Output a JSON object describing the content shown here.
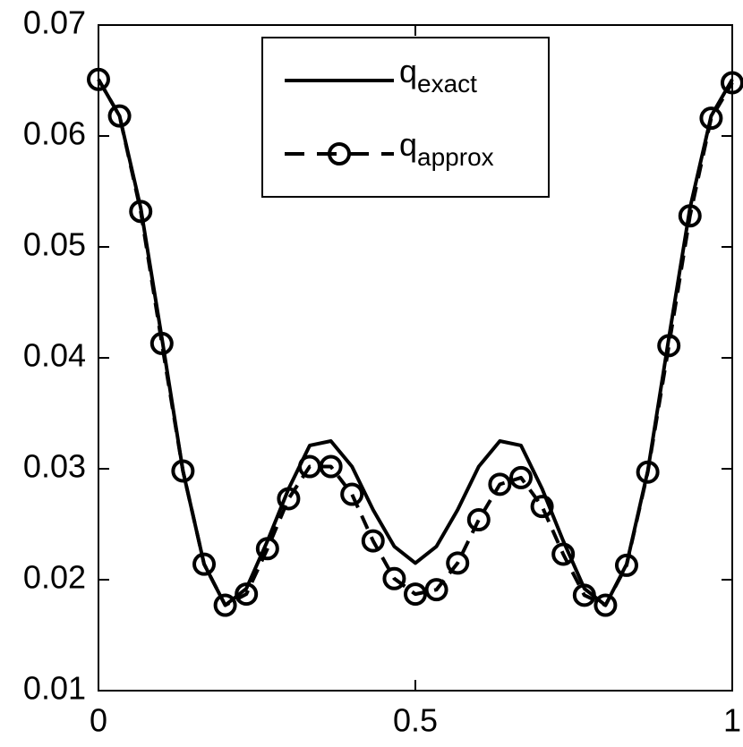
{
  "chart_data": {
    "type": "line",
    "x": [
      0,
      0.0333,
      0.0667,
      0.1,
      0.1333,
      0.1667,
      0.2,
      0.2333,
      0.2667,
      0.3,
      0.3333,
      0.3667,
      0.4,
      0.4333,
      0.4667,
      0.5,
      0.5333,
      0.5667,
      0.6,
      0.6333,
      0.6667,
      0.7,
      0.7333,
      0.7667,
      0.8,
      0.8333,
      0.8667,
      0.9,
      0.9333,
      0.9667,
      1
    ],
    "series": [
      {
        "name": "q",
        "subscript": "exact",
        "color": "#000000",
        "style": "solid",
        "values": [
          0.0651,
          0.0618,
          0.0535,
          0.0418,
          0.0298,
          0.0214,
          0.0177,
          0.0192,
          0.0235,
          0.0282,
          0.0321,
          0.0325,
          0.0302,
          0.0263,
          0.023,
          0.0215,
          0.023,
          0.0263,
          0.0302,
          0.0325,
          0.0321,
          0.0282,
          0.0235,
          0.0192,
          0.0177,
          0.0214,
          0.0298,
          0.0418,
          0.0535,
          0.0618,
          0.0651
        ]
      },
      {
        "name": "q",
        "subscript": "approx",
        "color": "#000000",
        "style": "dashed",
        "marker": "circle",
        "values": [
          0.0651,
          0.0618,
          0.0532,
          0.0413,
          0.0298,
          0.0214,
          0.0177,
          0.0187,
          0.0228,
          0.0273,
          0.0302,
          0.0302,
          0.0277,
          0.0235,
          0.0201,
          0.0187,
          0.0191,
          0.0215,
          0.0254,
          0.0286,
          0.0292,
          0.0266,
          0.0223,
          0.0186,
          0.0177,
          0.0213,
          0.0297,
          0.0411,
          0.0528,
          0.0616,
          0.0648
        ]
      }
    ],
    "xlim": [
      0,
      1
    ],
    "xticks": [
      0,
      0.5,
      1
    ],
    "ylim": [
      0.01,
      0.07
    ],
    "yticks": [
      0.01,
      0.02,
      0.03,
      0.04,
      0.05,
      0.06,
      0.07
    ],
    "legend": "top-center"
  }
}
